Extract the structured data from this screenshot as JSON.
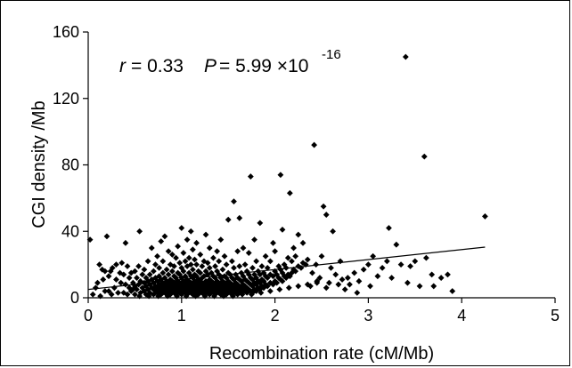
{
  "chart_data": {
    "type": "scatter",
    "title": "",
    "xlabel": "Recombination rate (cM/Mb)",
    "ylabel": "CGI density /Mb",
    "xlim": [
      0,
      5
    ],
    "ylim": [
      0,
      160
    ],
    "x_ticks": [
      "0",
      "1",
      "2",
      "3",
      "4",
      "5"
    ],
    "y_ticks": [
      "0",
      "40",
      "80",
      "120",
      "160"
    ],
    "grid": false,
    "legend": "none",
    "annotation": {
      "r_symbol": "r",
      "r_value": "= 0.33",
      "p_symbol": "P",
      "p_value": "= 5.99 ×10",
      "p_exponent": "-16"
    },
    "trendline": {
      "x": [
        0,
        4.25
      ],
      "y": [
        5.0,
        30.5
      ]
    },
    "marker": "diamond",
    "points": [
      [
        0.02,
        35
      ],
      [
        0.12,
        20
      ],
      [
        0.15,
        17
      ],
      [
        0.16,
        11
      ],
      [
        0.18,
        16
      ],
      [
        0.18,
        4
      ],
      [
        0.2,
        37
      ],
      [
        0.22,
        4
      ],
      [
        0.22,
        13
      ],
      [
        0.24,
        16
      ],
      [
        0.25,
        2
      ],
      [
        0.26,
        18
      ],
      [
        0.28,
        6
      ],
      [
        0.3,
        20
      ],
      [
        0.3,
        11
      ],
      [
        0.32,
        3
      ],
      [
        0.34,
        15
      ],
      [
        0.35,
        9
      ],
      [
        0.36,
        21
      ],
      [
        0.38,
        14
      ],
      [
        0.38,
        3
      ],
      [
        0.4,
        8
      ],
      [
        0.4,
        33
      ],
      [
        0.42,
        19
      ],
      [
        0.42,
        2
      ],
      [
        0.44,
        6
      ],
      [
        0.44,
        12
      ],
      [
        0.46,
        4
      ],
      [
        0.46,
        15
      ],
      [
        0.48,
        9
      ],
      [
        0.48,
        5
      ],
      [
        0.5,
        16
      ],
      [
        0.5,
        7
      ],
      [
        0.5,
        2
      ],
      [
        0.52,
        12
      ],
      [
        0.52,
        5
      ],
      [
        0.54,
        8
      ],
      [
        0.54,
        19
      ],
      [
        0.55,
        40
      ],
      [
        0.56,
        3
      ],
      [
        0.56,
        10
      ],
      [
        0.58,
        6
      ],
      [
        0.58,
        14
      ],
      [
        0.6,
        4
      ],
      [
        0.6,
        9
      ],
      [
        0.6,
        17
      ],
      [
        0.62,
        2
      ],
      [
        0.62,
        7
      ],
      [
        0.62,
        12
      ],
      [
        0.64,
        5
      ],
      [
        0.64,
        10
      ],
      [
        0.64,
        22
      ],
      [
        0.66,
        3
      ],
      [
        0.66,
        8
      ],
      [
        0.66,
        14
      ],
      [
        0.68,
        6
      ],
      [
        0.68,
        11
      ],
      [
        0.68,
        30
      ],
      [
        0.7,
        2
      ],
      [
        0.7,
        5
      ],
      [
        0.7,
        9
      ],
      [
        0.7,
        16
      ],
      [
        0.72,
        4
      ],
      [
        0.72,
        7
      ],
      [
        0.72,
        12
      ],
      [
        0.72,
        20
      ],
      [
        0.74,
        3
      ],
      [
        0.74,
        6
      ],
      [
        0.74,
        10
      ],
      [
        0.74,
        25
      ],
      [
        0.76,
        5
      ],
      [
        0.76,
        8
      ],
      [
        0.76,
        13
      ],
      [
        0.76,
        18
      ],
      [
        0.78,
        2
      ],
      [
        0.78,
        4
      ],
      [
        0.78,
        7
      ],
      [
        0.78,
        11
      ],
      [
        0.78,
        34
      ],
      [
        0.8,
        3
      ],
      [
        0.8,
        6
      ],
      [
        0.8,
        9
      ],
      [
        0.8,
        15
      ],
      [
        0.8,
        22
      ],
      [
        0.82,
        5
      ],
      [
        0.82,
        8
      ],
      [
        0.82,
        12
      ],
      [
        0.82,
        37
      ],
      [
        0.84,
        2
      ],
      [
        0.84,
        4
      ],
      [
        0.84,
        7
      ],
      [
        0.84,
        10
      ],
      [
        0.84,
        17
      ],
      [
        0.86,
        3
      ],
      [
        0.86,
        6
      ],
      [
        0.86,
        9
      ],
      [
        0.86,
        14
      ],
      [
        0.86,
        28
      ],
      [
        0.88,
        2
      ],
      [
        0.88,
        5
      ],
      [
        0.88,
        8
      ],
      [
        0.88,
        11
      ],
      [
        0.88,
        20
      ],
      [
        0.9,
        4
      ],
      [
        0.9,
        7
      ],
      [
        0.9,
        10
      ],
      [
        0.9,
        16
      ],
      [
        0.9,
        26
      ],
      [
        0.92,
        3
      ],
      [
        0.92,
        6
      ],
      [
        0.92,
        9
      ],
      [
        0.92,
        13
      ],
      [
        0.92,
        19
      ],
      [
        0.94,
        2
      ],
      [
        0.94,
        5
      ],
      [
        0.94,
        8
      ],
      [
        0.94,
        12
      ],
      [
        0.94,
        24
      ],
      [
        0.96,
        4
      ],
      [
        0.96,
        7
      ],
      [
        0.96,
        10
      ],
      [
        0.96,
        15
      ],
      [
        0.96,
        31
      ],
      [
        0.98,
        3
      ],
      [
        0.98,
        6
      ],
      [
        0.98,
        9
      ],
      [
        0.98,
        14
      ],
      [
        0.98,
        21
      ],
      [
        1.0,
        2
      ],
      [
        1.0,
        5
      ],
      [
        1.0,
        8
      ],
      [
        1.0,
        12
      ],
      [
        1.0,
        18
      ],
      [
        1.0,
        42
      ],
      [
        1.02,
        4
      ],
      [
        1.02,
        7
      ],
      [
        1.02,
        10
      ],
      [
        1.02,
        16
      ],
      [
        1.02,
        27
      ],
      [
        1.04,
        3
      ],
      [
        1.04,
        6
      ],
      [
        1.04,
        9
      ],
      [
        1.04,
        13
      ],
      [
        1.04,
        22
      ],
      [
        1.06,
        2
      ],
      [
        1.06,
        5
      ],
      [
        1.06,
        8
      ],
      [
        1.06,
        11
      ],
      [
        1.06,
        19
      ],
      [
        1.06,
        35
      ],
      [
        1.08,
        4
      ],
      [
        1.08,
        7
      ],
      [
        1.08,
        10
      ],
      [
        1.08,
        15
      ],
      [
        1.08,
        24
      ],
      [
        1.1,
        3
      ],
      [
        1.1,
        6
      ],
      [
        1.1,
        9
      ],
      [
        1.1,
        13
      ],
      [
        1.1,
        20
      ],
      [
        1.1,
        40
      ],
      [
        1.12,
        2
      ],
      [
        1.12,
        5
      ],
      [
        1.12,
        8
      ],
      [
        1.12,
        12
      ],
      [
        1.12,
        17
      ],
      [
        1.12,
        29
      ],
      [
        1.14,
        4
      ],
      [
        1.14,
        7
      ],
      [
        1.14,
        10
      ],
      [
        1.14,
        14
      ],
      [
        1.14,
        23
      ],
      [
        1.16,
        3
      ],
      [
        1.16,
        6
      ],
      [
        1.16,
        9
      ],
      [
        1.16,
        13
      ],
      [
        1.16,
        20
      ],
      [
        1.16,
        33
      ],
      [
        1.18,
        2
      ],
      [
        1.18,
        5
      ],
      [
        1.18,
        8
      ],
      [
        1.18,
        11
      ],
      [
        1.18,
        16
      ],
      [
        1.2,
        4
      ],
      [
        1.2,
        7
      ],
      [
        1.2,
        10
      ],
      [
        1.2,
        15
      ],
      [
        1.2,
        26
      ],
      [
        1.22,
        3
      ],
      [
        1.22,
        6
      ],
      [
        1.22,
        9
      ],
      [
        1.22,
        12
      ],
      [
        1.22,
        19
      ],
      [
        1.24,
        2
      ],
      [
        1.24,
        5
      ],
      [
        1.24,
        8
      ],
      [
        1.24,
        13
      ],
      [
        1.24,
        22
      ],
      [
        1.26,
        4
      ],
      [
        1.26,
        7
      ],
      [
        1.26,
        10
      ],
      [
        1.26,
        16
      ],
      [
        1.26,
        38
      ],
      [
        1.28,
        3
      ],
      [
        1.28,
        6
      ],
      [
        1.28,
        9
      ],
      [
        1.28,
        14
      ],
      [
        1.28,
        21
      ],
      [
        1.3,
        2
      ],
      [
        1.3,
        5
      ],
      [
        1.3,
        8
      ],
      [
        1.3,
        11
      ],
      [
        1.3,
        18
      ],
      [
        1.3,
        30
      ],
      [
        1.32,
        4
      ],
      [
        1.32,
        7
      ],
      [
        1.32,
        10
      ],
      [
        1.32,
        15
      ],
      [
        1.34,
        3
      ],
      [
        1.34,
        6
      ],
      [
        1.34,
        9
      ],
      [
        1.34,
        13
      ],
      [
        1.34,
        24
      ],
      [
        1.36,
        2
      ],
      [
        1.36,
        5
      ],
      [
        1.36,
        8
      ],
      [
        1.36,
        12
      ],
      [
        1.36,
        19
      ],
      [
        1.38,
        4
      ],
      [
        1.38,
        7
      ],
      [
        1.38,
        10
      ],
      [
        1.38,
        16
      ],
      [
        1.38,
        28
      ],
      [
        1.4,
        3
      ],
      [
        1.4,
        6
      ],
      [
        1.4,
        9
      ],
      [
        1.4,
        14
      ],
      [
        1.4,
        22
      ],
      [
        1.42,
        2
      ],
      [
        1.42,
        5
      ],
      [
        1.42,
        8
      ],
      [
        1.42,
        12
      ],
      [
        1.42,
        35
      ],
      [
        1.44,
        4
      ],
      [
        1.44,
        7
      ],
      [
        1.44,
        10
      ],
      [
        1.44,
        17
      ],
      [
        1.46,
        3
      ],
      [
        1.46,
        6
      ],
      [
        1.46,
        9
      ],
      [
        1.46,
        13
      ],
      [
        1.46,
        25
      ],
      [
        1.48,
        2
      ],
      [
        1.48,
        5
      ],
      [
        1.48,
        8
      ],
      [
        1.48,
        12
      ],
      [
        1.48,
        20
      ],
      [
        1.5,
        4
      ],
      [
        1.5,
        7
      ],
      [
        1.5,
        10
      ],
      [
        1.5,
        15
      ],
      [
        1.5,
        47
      ],
      [
        1.52,
        3
      ],
      [
        1.52,
        6
      ],
      [
        1.52,
        9
      ],
      [
        1.52,
        14
      ],
      [
        1.54,
        2
      ],
      [
        1.54,
        5
      ],
      [
        1.54,
        8
      ],
      [
        1.54,
        12
      ],
      [
        1.54,
        22
      ],
      [
        1.56,
        4
      ],
      [
        1.56,
        7
      ],
      [
        1.56,
        11
      ],
      [
        1.56,
        18
      ],
      [
        1.56,
        58
      ],
      [
        1.58,
        3
      ],
      [
        1.58,
        6
      ],
      [
        1.58,
        9
      ],
      [
        1.58,
        14
      ],
      [
        1.6,
        2
      ],
      [
        1.6,
        5
      ],
      [
        1.6,
        8
      ],
      [
        1.6,
        12
      ],
      [
        1.6,
        28
      ],
      [
        1.62,
        4
      ],
      [
        1.62,
        7
      ],
      [
        1.62,
        11
      ],
      [
        1.62,
        19
      ],
      [
        1.62,
        48
      ],
      [
        1.64,
        3
      ],
      [
        1.64,
        6
      ],
      [
        1.64,
        10
      ],
      [
        1.64,
        15
      ],
      [
        1.66,
        5
      ],
      [
        1.66,
        8
      ],
      [
        1.66,
        13
      ],
      [
        1.66,
        30
      ],
      [
        1.68,
        4
      ],
      [
        1.68,
        7
      ],
      [
        1.68,
        11
      ],
      [
        1.68,
        20
      ],
      [
        1.7,
        3
      ],
      [
        1.7,
        6
      ],
      [
        1.7,
        10
      ],
      [
        1.7,
        16
      ],
      [
        1.72,
        5
      ],
      [
        1.72,
        9
      ],
      [
        1.72,
        14
      ],
      [
        1.72,
        27
      ],
      [
        1.74,
        4
      ],
      [
        1.74,
        8
      ],
      [
        1.74,
        12
      ],
      [
        1.74,
        73
      ],
      [
        1.76,
        3
      ],
      [
        1.76,
        7
      ],
      [
        1.76,
        11
      ],
      [
        1.76,
        18
      ],
      [
        1.78,
        5
      ],
      [
        1.78,
        9
      ],
      [
        1.78,
        14
      ],
      [
        1.78,
        35
      ],
      [
        1.8,
        4
      ],
      [
        1.8,
        8
      ],
      [
        1.8,
        12
      ],
      [
        1.8,
        22
      ],
      [
        1.82,
        6
      ],
      [
        1.82,
        10
      ],
      [
        1.82,
        16
      ],
      [
        1.84,
        5
      ],
      [
        1.84,
        9
      ],
      [
        1.84,
        14
      ],
      [
        1.84,
        45
      ],
      [
        1.86,
        7
      ],
      [
        1.86,
        11
      ],
      [
        1.86,
        19
      ],
      [
        1.88,
        6
      ],
      [
        1.88,
        10
      ],
      [
        1.88,
        15
      ],
      [
        1.9,
        8
      ],
      [
        1.9,
        13
      ],
      [
        1.9,
        25
      ],
      [
        1.92,
        7
      ],
      [
        1.92,
        12
      ],
      [
        1.92,
        18
      ],
      [
        1.95,
        9
      ],
      [
        1.95,
        14
      ],
      [
        1.95,
        22
      ],
      [
        1.98,
        8
      ],
      [
        1.98,
        13
      ],
      [
        1.98,
        33
      ],
      [
        2.0,
        10
      ],
      [
        2.0,
        16
      ],
      [
        2.0,
        28
      ],
      [
        2.02,
        9
      ],
      [
        2.02,
        14
      ],
      [
        2.04,
        12
      ],
      [
        2.04,
        19
      ],
      [
        2.06,
        11
      ],
      [
        2.06,
        17
      ],
      [
        2.06,
        74
      ],
      [
        2.08,
        10
      ],
      [
        2.08,
        15
      ],
      [
        2.08,
        41
      ],
      [
        2.1,
        13
      ],
      [
        2.1,
        20
      ],
      [
        2.12,
        12
      ],
      [
        2.12,
        18
      ],
      [
        2.14,
        14
      ],
      [
        2.14,
        24
      ],
      [
        2.16,
        13
      ],
      [
        2.16,
        63
      ],
      [
        2.18,
        15
      ],
      [
        2.18,
        22
      ],
      [
        2.2,
        17
      ],
      [
        2.2,
        30
      ],
      [
        2.22,
        16
      ],
      [
        2.22,
        25
      ],
      [
        2.25,
        19
      ],
      [
        2.25,
        38
      ],
      [
        2.28,
        18
      ],
      [
        2.3,
        21
      ],
      [
        2.3,
        33
      ],
      [
        2.33,
        20
      ],
      [
        2.35,
        23
      ],
      [
        2.38,
        7
      ],
      [
        2.4,
        15
      ],
      [
        2.42,
        92
      ],
      [
        2.44,
        20
      ],
      [
        2.45,
        10
      ],
      [
        2.48,
        12
      ],
      [
        2.5,
        25
      ],
      [
        2.52,
        55
      ],
      [
        2.55,
        6
      ],
      [
        2.55,
        50
      ],
      [
        2.58,
        9
      ],
      [
        2.6,
        18
      ],
      [
        2.62,
        40
      ],
      [
        2.65,
        14
      ],
      [
        2.68,
        8
      ],
      [
        2.7,
        22
      ],
      [
        2.72,
        11
      ],
      [
        2.75,
        5
      ],
      [
        2.78,
        12
      ],
      [
        2.8,
        8
      ],
      [
        2.85,
        15
      ],
      [
        2.88,
        3
      ],
      [
        2.9,
        10
      ],
      [
        2.95,
        17
      ],
      [
        3.0,
        20
      ],
      [
        3.02,
        7
      ],
      [
        3.05,
        25
      ],
      [
        3.1,
        13
      ],
      [
        3.15,
        18
      ],
      [
        3.2,
        22
      ],
      [
        3.22,
        42
      ],
      [
        3.25,
        12
      ],
      [
        3.3,
        32
      ],
      [
        3.35,
        20
      ],
      [
        3.4,
        145
      ],
      [
        3.42,
        9
      ],
      [
        3.45,
        19
      ],
      [
        3.5,
        22
      ],
      [
        3.55,
        7
      ],
      [
        3.6,
        85
      ],
      [
        3.62,
        24
      ],
      [
        3.68,
        14
      ],
      [
        3.7,
        7
      ],
      [
        3.78,
        12
      ],
      [
        3.85,
        14
      ],
      [
        3.9,
        4
      ],
      [
        4.25,
        49
      ],
      [
        0.05,
        2
      ],
      [
        0.08,
        6
      ],
      [
        0.1,
        9
      ],
      [
        0.13,
        1
      ],
      [
        0.55,
        1
      ],
      [
        0.65,
        1
      ],
      [
        0.75,
        1
      ],
      [
        0.85,
        1
      ],
      [
        0.95,
        1
      ],
      [
        1.05,
        1
      ],
      [
        1.15,
        1
      ],
      [
        1.25,
        1
      ],
      [
        1.35,
        1
      ],
      [
        1.45,
        1
      ],
      [
        1.55,
        1
      ],
      [
        1.65,
        2
      ],
      [
        1.75,
        2
      ],
      [
        1.85,
        3
      ],
      [
        1.95,
        4
      ],
      [
        2.05,
        5
      ],
      [
        2.15,
        6
      ],
      [
        2.25,
        7
      ],
      [
        2.35,
        8
      ],
      [
        2.45,
        9
      ]
    ]
  }
}
